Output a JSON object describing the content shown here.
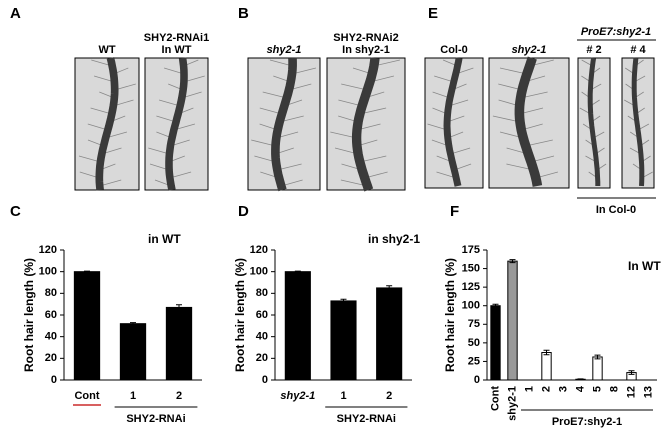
{
  "panels": [
    "A",
    "B",
    "E",
    "C",
    "D",
    "F"
  ],
  "photos": {
    "A": [
      [
        "WT"
      ],
      [
        "SHY2-RNAi1",
        "In WT"
      ]
    ],
    "B": [
      [
        "shy2-1"
      ],
      [
        "SHY2-RNAi2",
        "In shy2-1"
      ]
    ],
    "E": [
      [
        "Col-0"
      ],
      [
        "shy2-1"
      ],
      [
        "# 2"
      ],
      [
        "# 4"
      ]
    ],
    "E_group": "ProE7:shy2-1",
    "E_note": "In Col-0"
  },
  "chart_data": [
    {
      "type": "bar",
      "y_label": "Root hair length (%)",
      "annotation": "in WT",
      "categories": [
        "Cont",
        "1",
        "2"
      ],
      "values": [
        100,
        52,
        67
      ],
      "errors": [
        0.5,
        1,
        2.5
      ],
      "colors": [
        "#000000",
        "#000000",
        "#000000"
      ],
      "group_label": "SHY2-RNAi",
      "ylim": [
        0,
        120
      ],
      "yticks": [
        0,
        20,
        40,
        60,
        80,
        100,
        120
      ]
    },
    {
      "type": "bar",
      "y_label": "Root hair length (%)",
      "annotation": "in shy2-1",
      "categories": [
        "shy2-1",
        "1",
        "2"
      ],
      "values": [
        100,
        73,
        85
      ],
      "errors": [
        0.5,
        1.5,
        2
      ],
      "colors": [
        "#000000",
        "#000000",
        "#000000"
      ],
      "group_label": "SHY2-RNAi",
      "ylim": [
        0,
        120
      ],
      "yticks": [
        0,
        20,
        40,
        60,
        80,
        100,
        120
      ]
    },
    {
      "type": "bar",
      "y_label": "Root hair length (%)",
      "annotation": "In WT",
      "categories": [
        "Cont",
        "shy2-1",
        "1",
        "2",
        "3",
        "4",
        "5",
        "8",
        "12",
        "13"
      ],
      "values": [
        100,
        160,
        0,
        37,
        0,
        1,
        31,
        0,
        10,
        0
      ],
      "errors": [
        2,
        2,
        0,
        3,
        0,
        0.5,
        2.5,
        0,
        2.5,
        0
      ],
      "colors": [
        "#000000",
        "#999999",
        "#ffffff",
        "#ffffff",
        "#ffffff",
        "#ffffff",
        "#ffffff",
        "#ffffff",
        "#ffffff",
        "#ffffff"
      ],
      "group_label": "ProE7:shy2-1",
      "ylim": [
        0,
        175
      ],
      "yticks": [
        0,
        25,
        50,
        75,
        100,
        125,
        150,
        175
      ]
    }
  ]
}
